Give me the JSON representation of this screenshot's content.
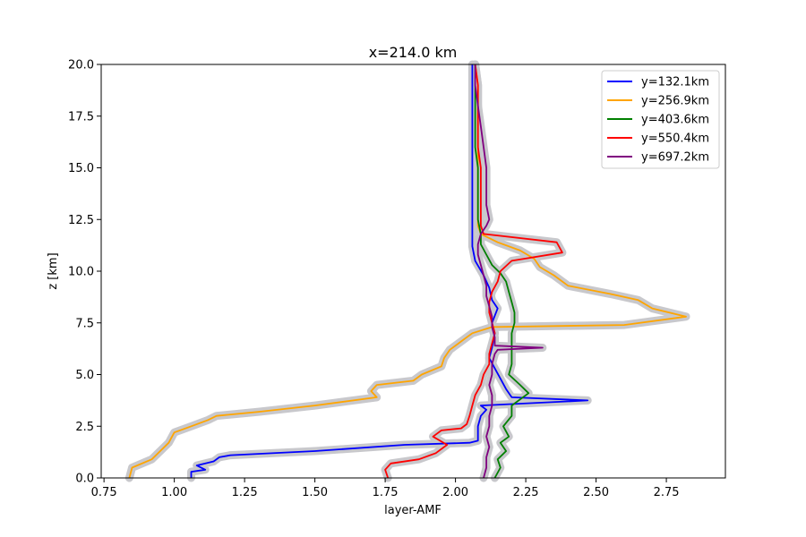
{
  "chart_data": {
    "type": "line",
    "title": "x=214.0 km",
    "xlabel": "layer-AMF",
    "ylabel": "z [km]",
    "xlim": [
      0.74,
      2.96
    ],
    "ylim": [
      0,
      20
    ],
    "xticks": [
      "0.75",
      "1.00",
      "1.25",
      "1.50",
      "1.75",
      "2.00",
      "2.25",
      "2.50",
      "2.75"
    ],
    "xtick_values": [
      0.75,
      1.0,
      1.25,
      1.5,
      1.75,
      2.0,
      2.25,
      2.5,
      2.75
    ],
    "yticks": [
      "0.0",
      "2.5",
      "5.0",
      "7.5",
      "10.0",
      "12.5",
      "15.0",
      "17.5",
      "20.0"
    ],
    "ytick_values": [
      0,
      2.5,
      5,
      7.5,
      10,
      12.5,
      15,
      17.5,
      20
    ],
    "grid": false,
    "legend_position": "top-right",
    "uncertainty_band_color": "#c8c8cc",
    "series": [
      {
        "name": "y=132.1km",
        "color": "#0000ff",
        "points": [
          [
            1.06,
            0
          ],
          [
            1.06,
            0.3
          ],
          [
            1.11,
            0.4
          ],
          [
            1.08,
            0.6
          ],
          [
            1.14,
            0.8
          ],
          [
            1.16,
            1.0
          ],
          [
            1.2,
            1.1
          ],
          [
            1.5,
            1.3
          ],
          [
            1.82,
            1.6
          ],
          [
            2.05,
            1.7
          ],
          [
            2.08,
            1.8
          ],
          [
            2.08,
            2.5
          ],
          [
            2.09,
            3.0
          ],
          [
            2.11,
            3.3
          ],
          [
            2.09,
            3.5
          ],
          [
            2.47,
            3.75
          ],
          [
            2.2,
            3.9
          ],
          [
            2.18,
            4.3
          ],
          [
            2.16,
            4.8
          ],
          [
            2.14,
            5.3
          ],
          [
            2.12,
            5.8
          ],
          [
            2.13,
            6.3
          ],
          [
            2.14,
            7.0
          ],
          [
            2.13,
            7.5
          ],
          [
            2.15,
            8.2
          ],
          [
            2.13,
            8.6
          ],
          [
            2.12,
            9.2
          ],
          [
            2.1,
            9.8
          ],
          [
            2.07,
            10.5
          ],
          [
            2.06,
            11.2
          ],
          [
            2.06,
            12.0
          ],
          [
            2.06,
            13
          ],
          [
            2.06,
            14
          ],
          [
            2.06,
            15
          ],
          [
            2.06,
            16
          ],
          [
            2.06,
            17
          ],
          [
            2.06,
            18
          ],
          [
            2.06,
            19
          ],
          [
            2.06,
            20
          ]
        ]
      },
      {
        "name": "y=256.9km",
        "color": "#ffa500",
        "points": [
          [
            0.84,
            0
          ],
          [
            0.85,
            0.5
          ],
          [
            0.92,
            0.9
          ],
          [
            0.95,
            1.3
          ],
          [
            0.98,
            1.7
          ],
          [
            1.0,
            2.2
          ],
          [
            1.06,
            2.5
          ],
          [
            1.12,
            2.8
          ],
          [
            1.15,
            3.0
          ],
          [
            1.3,
            3.2
          ],
          [
            1.5,
            3.5
          ],
          [
            1.72,
            3.9
          ],
          [
            1.7,
            4.2
          ],
          [
            1.72,
            4.5
          ],
          [
            1.85,
            4.7
          ],
          [
            1.88,
            5.0
          ],
          [
            1.95,
            5.4
          ],
          [
            1.96,
            5.8
          ],
          [
            1.98,
            6.2
          ],
          [
            2.02,
            6.6
          ],
          [
            2.06,
            7.0
          ],
          [
            2.13,
            7.3
          ],
          [
            2.6,
            7.4
          ],
          [
            2.82,
            7.8
          ],
          [
            2.7,
            8.2
          ],
          [
            2.65,
            8.6
          ],
          [
            2.55,
            8.9
          ],
          [
            2.4,
            9.3
          ],
          [
            2.35,
            9.8
          ],
          [
            2.3,
            10.2
          ],
          [
            2.28,
            10.6
          ],
          [
            2.23,
            11.0
          ],
          [
            2.15,
            11.4
          ],
          [
            2.09,
            11.8
          ],
          [
            2.08,
            12.2
          ],
          [
            2.08,
            13
          ],
          [
            2.08,
            14
          ],
          [
            2.08,
            15
          ],
          [
            2.08,
            16
          ],
          [
            2.08,
            17
          ],
          [
            2.08,
            18
          ],
          [
            2.08,
            19
          ],
          [
            2.07,
            20
          ]
        ]
      },
      {
        "name": "y=403.6km",
        "color": "#008000",
        "points": [
          [
            2.14,
            0
          ],
          [
            2.16,
            0.5
          ],
          [
            2.15,
            0.9
          ],
          [
            2.18,
            1.3
          ],
          [
            2.16,
            1.7
          ],
          [
            2.19,
            2.0
          ],
          [
            2.17,
            2.5
          ],
          [
            2.2,
            3.0
          ],
          [
            2.2,
            3.5
          ],
          [
            2.26,
            4.1
          ],
          [
            2.23,
            4.5
          ],
          [
            2.19,
            5.0
          ],
          [
            2.2,
            5.5
          ],
          [
            2.2,
            6.0
          ],
          [
            2.2,
            6.5
          ],
          [
            2.2,
            7.0
          ],
          [
            2.21,
            7.5
          ],
          [
            2.21,
            8.0
          ],
          [
            2.2,
            8.5
          ],
          [
            2.19,
            9.0
          ],
          [
            2.18,
            9.5
          ],
          [
            2.16,
            9.9
          ],
          [
            2.13,
            10.3
          ],
          [
            2.11,
            10.8
          ],
          [
            2.09,
            11.3
          ],
          [
            2.09,
            11.8
          ],
          [
            2.08,
            12.5
          ],
          [
            2.08,
            13
          ],
          [
            2.08,
            14
          ],
          [
            2.08,
            15
          ],
          [
            2.07,
            16
          ],
          [
            2.07,
            17
          ],
          [
            2.07,
            18
          ],
          [
            2.07,
            19
          ],
          [
            2.07,
            20
          ]
        ]
      },
      {
        "name": "y=550.4km",
        "color": "#ff0000",
        "points": [
          [
            1.76,
            0
          ],
          [
            1.75,
            0.4
          ],
          [
            1.77,
            0.7
          ],
          [
            1.87,
            0.9
          ],
          [
            1.93,
            1.2
          ],
          [
            1.97,
            1.6
          ],
          [
            1.92,
            2.0
          ],
          [
            1.95,
            2.3
          ],
          [
            2.02,
            2.4
          ],
          [
            2.04,
            2.6
          ],
          [
            2.05,
            3.0
          ],
          [
            2.06,
            3.5
          ],
          [
            2.07,
            4.0
          ],
          [
            2.09,
            4.5
          ],
          [
            2.1,
            5.0
          ],
          [
            2.12,
            5.5
          ],
          [
            2.12,
            6.0
          ],
          [
            2.13,
            6.5
          ],
          [
            2.14,
            7.0
          ],
          [
            2.13,
            7.5
          ],
          [
            2.12,
            8.0
          ],
          [
            2.12,
            8.5
          ],
          [
            2.13,
            9.0
          ],
          [
            2.15,
            9.5
          ],
          [
            2.16,
            10.0
          ],
          [
            2.2,
            10.5
          ],
          [
            2.38,
            10.9
          ],
          [
            2.36,
            11.4
          ],
          [
            2.1,
            11.8
          ],
          [
            2.09,
            12.2
          ],
          [
            2.09,
            13
          ],
          [
            2.09,
            14
          ],
          [
            2.09,
            15
          ],
          [
            2.08,
            16
          ],
          [
            2.08,
            17
          ],
          [
            2.08,
            18
          ],
          [
            2.08,
            19
          ],
          [
            2.07,
            20
          ]
        ]
      },
      {
        "name": "y=697.2km",
        "color": "#800080",
        "points": [
          [
            2.1,
            0
          ],
          [
            2.11,
            0.5
          ],
          [
            2.11,
            1.0
          ],
          [
            2.12,
            1.5
          ],
          [
            2.11,
            2.0
          ],
          [
            2.12,
            2.5
          ],
          [
            2.12,
            3.0
          ],
          [
            2.13,
            3.5
          ],
          [
            2.13,
            4.0
          ],
          [
            2.12,
            4.5
          ],
          [
            2.13,
            5.0
          ],
          [
            2.13,
            5.5
          ],
          [
            2.14,
            6.0
          ],
          [
            2.15,
            6.2
          ],
          [
            2.31,
            6.3
          ],
          [
            2.14,
            6.4
          ],
          [
            2.14,
            6.8
          ],
          [
            2.13,
            7.3
          ],
          [
            2.13,
            7.8
          ],
          [
            2.12,
            8.3
          ],
          [
            2.11,
            8.8
          ],
          [
            2.11,
            9.3
          ],
          [
            2.1,
            9.8
          ],
          [
            2.09,
            10.3
          ],
          [
            2.08,
            10.8
          ],
          [
            2.08,
            11.3
          ],
          [
            2.09,
            11.8
          ],
          [
            2.11,
            12.2
          ],
          [
            2.12,
            12.5
          ],
          [
            2.11,
            13.2
          ],
          [
            2.11,
            14
          ],
          [
            2.11,
            15
          ],
          [
            2.1,
            16
          ],
          [
            2.09,
            17
          ],
          [
            2.08,
            18
          ],
          [
            2.07,
            19
          ],
          [
            2.07,
            20
          ]
        ]
      }
    ]
  }
}
